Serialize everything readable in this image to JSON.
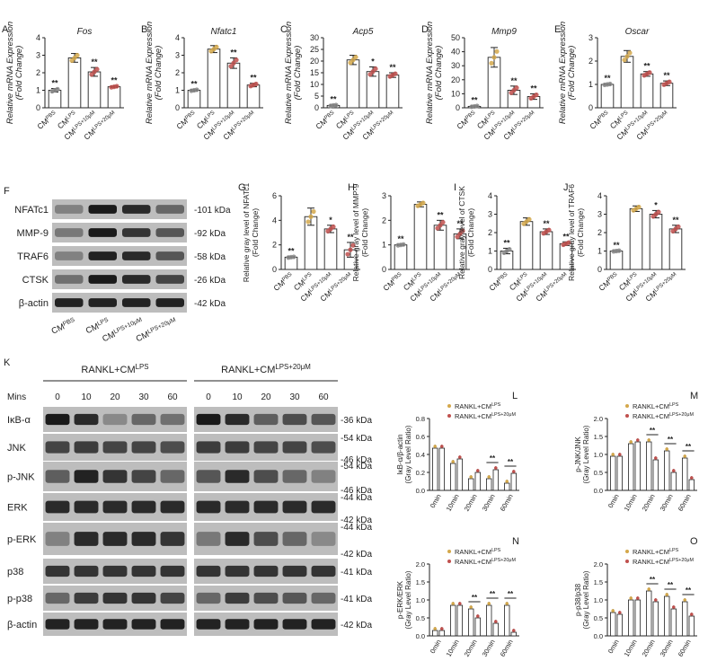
{
  "figure": {
    "panels_top": [
      {
        "letter": "A",
        "title": "Fos",
        "italic": true,
        "ylabel_lines": [
          "Relative mRNA Expression",
          "(Fold Change)"
        ],
        "yticks": [
          "0",
          "1",
          "2",
          "3",
          "4"
        ],
        "ymax": 4
      },
      {
        "letter": "B",
        "title": "Nfatc1",
        "italic": true,
        "ylabel_lines": [
          "Relative mRNA Expression",
          "(Fold Change)"
        ],
        "yticks": [
          "0",
          "1",
          "2",
          "3",
          "4"
        ],
        "ymax": 4
      },
      {
        "letter": "C",
        "title": "Acp5",
        "italic": true,
        "ylabel_lines": [
          "Relative mRNA Expression",
          "(Fold Change)"
        ],
        "yticks": [
          "0",
          "5",
          "10",
          "15",
          "20",
          "25",
          "30"
        ],
        "ymax": 30
      },
      {
        "letter": "D",
        "title": "Mmp9",
        "italic": true,
        "ylabel_lines": [
          "Relative mRNA Expression",
          "(Fold Change)"
        ],
        "yticks": [
          "0",
          "10",
          "20",
          "30",
          "40",
          "50"
        ],
        "ymax": 50
      },
      {
        "letter": "E",
        "title": "Oscar",
        "italic": true,
        "ylabel_lines": [
          "Relative mRNA Expression",
          "(Fold Change)"
        ],
        "yticks": [
          "0",
          "1",
          "2",
          "3"
        ],
        "ymax": 3
      }
    ],
    "panels_mid": [
      {
        "letter": "G",
        "title": "",
        "ylabel_lines": [
          "Relative gray level of NFATc1",
          "(Fold Change)"
        ],
        "yticks": [
          "0",
          "2",
          "4",
          "6"
        ],
        "ymax": 6
      },
      {
        "letter": "H",
        "title": "",
        "ylabel_lines": [
          "Relative gray level of MMP-9",
          "(Fold Change)"
        ],
        "yticks": [
          "0",
          "1",
          "2",
          "3"
        ],
        "ymax": 3
      },
      {
        "letter": "I",
        "title": "",
        "ylabel_lines": [
          "Relative gray level of CTSK",
          "(Fold Change)"
        ],
        "yticks": [
          "0",
          "1",
          "2",
          "3",
          "4"
        ],
        "ymax": 4
      },
      {
        "letter": "J",
        "title": "",
        "ylabel_lines": [
          "Relative gray level of TRAF6",
          "(Fold Change)"
        ],
        "yticks": [
          "0",
          "1",
          "2",
          "3",
          "4"
        ],
        "ymax": 4
      }
    ],
    "cm_categories": [
      "CM^PBS",
      "CM^LPS",
      "CM^LPS+10μM",
      "CM^LPS+20μM"
    ],
    "panel_F": {
      "letter": "F",
      "rows": [
        {
          "name": "NFATc1",
          "kda": "-101 kDa"
        },
        {
          "name": "MMP-9",
          "kda": "-92 kDa"
        },
        {
          "name": "TRAF6",
          "kda": "-58 kDa"
        },
        {
          "name": "CTSK",
          "kda": "-26 kDa"
        },
        {
          "name": "β-actin",
          "kda": "-42 kDa"
        }
      ],
      "lanes": [
        "CM^PBS",
        "CM^LPS",
        "CM^LPS+10μM",
        "CM^LPS+20μM"
      ]
    },
    "panel_K": {
      "letter": "K",
      "group1": "RANKL+CM^LPS",
      "group2": "RANKL+CM^LPS+20μM",
      "mins_label": "Mins",
      "times": [
        "0",
        "10",
        "20",
        "30",
        "60"
      ],
      "rows": [
        {
          "name": "IκB-α",
          "kda": [
            "-36 kDa"
          ]
        },
        {
          "name": "JNK",
          "kda": [
            "-54 kDa",
            "-46 kDa"
          ]
        },
        {
          "name": "p-JNK",
          "kda": [
            "-54 kDa",
            "-46 kDa"
          ]
        },
        {
          "name": "ERK",
          "kda": [
            "-44 kDa",
            "-42 kDa"
          ]
        },
        {
          "name": "p-ERK",
          "kda": [
            "-44 kDa",
            "-42 kDa"
          ]
        },
        {
          "name": "p38",
          "kda": [
            "-41 kDa"
          ]
        },
        {
          "name": "p-p38",
          "kda": [
            "-41 kDa"
          ]
        },
        {
          "name": "β-actin",
          "kda": [
            "-42 kDa"
          ]
        }
      ]
    },
    "panels_time": [
      {
        "letter": "L",
        "ylabel_lines": [
          "IκB-α/β-actin",
          "(Gray Level Ratio)"
        ],
        "yticks": [
          "0.0",
          "0.2",
          "0.4",
          "0.6",
          "0.8"
        ],
        "ymax": 0.8
      },
      {
        "letter": "M",
        "ylabel_lines": [
          "p-JNK/JNK",
          "(Gray Level Ratio)"
        ],
        "yticks": [
          "0.0",
          "0.5",
          "1.0",
          "1.5",
          "2.0"
        ],
        "ymax": 2.0
      },
      {
        "letter": "N",
        "ylabel_lines": [
          "p-ERK/ERK",
          "(Gray Level Ratio)"
        ],
        "yticks": [
          "0.0",
          "0.5",
          "1.0",
          "1.5",
          "2.0"
        ],
        "ymax": 2.0
      },
      {
        "letter": "O",
        "ylabel_lines": [
          "p-p38/p38",
          "(Gray Level Ratio)"
        ],
        "yticks": [
          "0.0",
          "0.5",
          "1.0",
          "1.5",
          "2.0"
        ],
        "ymax": 2.0
      }
    ],
    "time_categories": [
      "0min",
      "10min",
      "20min",
      "30min",
      "60min"
    ],
    "legend": [
      "RANKL+CM^LPS",
      "RANKL+CM^LPS+20μM"
    ],
    "colors": {
      "lps": "#d4a84b",
      "combo": "#c0504d",
      "pbs": "#888888",
      "bar_edge": "#222222"
    }
  },
  "chart_data": [
    {
      "type": "bar",
      "title": "Fos",
      "categories": [
        "CM^PBS",
        "CM^LPS",
        "CM^LPS+10μM",
        "CM^LPS+20μM"
      ],
      "values": [
        1.0,
        2.85,
        2.05,
        1.2
      ],
      "errors": [
        0.1,
        0.25,
        0.25,
        0.05
      ],
      "sig": [
        "**",
        "",
        "**",
        "**"
      ],
      "ylim": [
        0,
        4
      ],
      "ylabel": "Relative mRNA Expression (Fold Change)"
    },
    {
      "type": "bar",
      "title": "Nfatc1",
      "categories": [
        "CM^PBS",
        "CM^LPS",
        "CM^LPS+10μM",
        "CM^LPS+20μM"
      ],
      "values": [
        1.0,
        3.35,
        2.55,
        1.3
      ],
      "errors": [
        0.05,
        0.2,
        0.3,
        0.1
      ],
      "sig": [
        "**",
        "",
        "**",
        "**"
      ],
      "ylim": [
        0,
        4
      ],
      "ylabel": "Relative mRNA Expression (Fold Change)"
    },
    {
      "type": "bar",
      "title": "Acp5",
      "categories": [
        "CM^PBS",
        "CM^LPS",
        "CM^LPS+10μM",
        "CM^LPS+20μM"
      ],
      "values": [
        1.0,
        20.5,
        15.5,
        14.0
      ],
      "errors": [
        0.3,
        2.0,
        2.0,
        1.0
      ],
      "sig": [
        "**",
        "",
        "*",
        "**"
      ],
      "ylim": [
        0,
        30
      ],
      "ylabel": "Relative mRNA Expression (Fold Change)"
    },
    {
      "type": "bar",
      "title": "Mmp9",
      "categories": [
        "CM^PBS",
        "CM^LPS",
        "CM^LPS+10μM",
        "CM^LPS+20μM"
      ],
      "values": [
        1.0,
        36.0,
        12.5,
        8.0
      ],
      "errors": [
        0.5,
        7.0,
        3.0,
        2.0
      ],
      "sig": [
        "**",
        "",
        "**",
        "**"
      ],
      "ylim": [
        0,
        50
      ],
      "ylabel": "Relative mRNA Expression (Fold Change)"
    },
    {
      "type": "bar",
      "title": "Oscar",
      "categories": [
        "CM^PBS",
        "CM^LPS",
        "CM^LPS+10μM",
        "CM^LPS+20μM"
      ],
      "values": [
        1.0,
        2.2,
        1.45,
        1.05
      ],
      "errors": [
        0.03,
        0.25,
        0.1,
        0.1
      ],
      "sig": [
        "**",
        "",
        "**",
        "**"
      ],
      "ylim": [
        0,
        3
      ],
      "ylabel": "Relative mRNA Expression (Fold Change)"
    },
    {
      "type": "bar",
      "title": "",
      "categories": [
        "CM^PBS",
        "CM^LPS",
        "CM^LPS+10μM",
        "CM^LPS+20μM"
      ],
      "values": [
        1.0,
        4.3,
        3.3,
        1.6
      ],
      "errors": [
        0.05,
        0.7,
        0.3,
        0.6
      ],
      "sig": [
        "**",
        "",
        "*",
        "**"
      ],
      "ylim": [
        0,
        6
      ],
      "ylabel": "Relative gray level of NFATc1 (Fold Change)"
    },
    {
      "type": "bar",
      "title": "",
      "categories": [
        "CM^PBS",
        "CM^LPS",
        "CM^LPS+10μM",
        "CM^LPS+20μM"
      ],
      "values": [
        1.0,
        2.65,
        1.8,
        1.45
      ],
      "errors": [
        0.03,
        0.1,
        0.2,
        0.2
      ],
      "sig": [
        "**",
        "",
        "**",
        "**"
      ],
      "ylim": [
        0,
        3
      ],
      "ylabel": "Relative gray level of MMP-9 (Fold Change)"
    },
    {
      "type": "bar",
      "title": "",
      "categories": [
        "CM^PBS",
        "CM^LPS",
        "CM^LPS+10μM",
        "CM^LPS+20μM"
      ],
      "values": [
        1.0,
        2.6,
        2.05,
        1.4
      ],
      "errors": [
        0.15,
        0.2,
        0.15,
        0.1
      ],
      "sig": [
        "**",
        "",
        "**",
        "**"
      ],
      "ylim": [
        0,
        4
      ],
      "ylabel": "Relative gray level of CTSK (Fold Change)"
    },
    {
      "type": "bar",
      "title": "",
      "categories": [
        "CM^PBS",
        "CM^LPS",
        "CM^LPS+10μM",
        "CM^LPS+20μM"
      ],
      "values": [
        1.0,
        3.3,
        3.0,
        2.2
      ],
      "errors": [
        0.03,
        0.15,
        0.2,
        0.2
      ],
      "sig": [
        "**",
        "",
        "*",
        "**"
      ],
      "ylim": [
        0,
        4
      ],
      "ylabel": "Relative gray level of TRAF6 (Fold Change)"
    },
    {
      "type": "bar",
      "categories": [
        "0min",
        "10min",
        "20min",
        "30min",
        "60min"
      ],
      "series": [
        {
          "name": "RANKL+CM^LPS",
          "values": [
            0.47,
            0.3,
            0.13,
            0.13,
            0.08
          ]
        },
        {
          "name": "RANKL+CM^LPS+20μM",
          "values": [
            0.47,
            0.35,
            0.2,
            0.23,
            0.19
          ]
        }
      ],
      "sig": [
        "",
        "",
        "",
        "**",
        "**"
      ],
      "ylim": [
        0,
        0.8
      ],
      "ylabel": "IκB-α/β-actin (Gray Level Ratio)"
    },
    {
      "type": "bar",
      "categories": [
        "0min",
        "10min",
        "20min",
        "30min",
        "60min"
      ],
      "series": [
        {
          "name": "RANKL+CM^LPS",
          "values": [
            0.95,
            1.3,
            1.35,
            1.1,
            0.9
          ]
        },
        {
          "name": "RANKL+CM^LPS+20μM",
          "values": [
            0.95,
            1.35,
            0.85,
            0.5,
            0.3
          ]
        }
      ],
      "sig": [
        "",
        "",
        "**",
        "**",
        "**"
      ],
      "ylim": [
        0,
        2.0
      ],
      "ylabel": "p-JNK/JNK (Gray Level Ratio)"
    },
    {
      "type": "bar",
      "categories": [
        "0min",
        "10min",
        "20min",
        "30min",
        "60min"
      ],
      "series": [
        {
          "name": "RANKL+CM^LPS",
          "values": [
            0.15,
            0.85,
            0.75,
            0.85,
            0.85
          ]
        },
        {
          "name": "RANKL+CM^LPS+20μM",
          "values": [
            0.15,
            0.85,
            0.5,
            0.35,
            0.1
          ]
        }
      ],
      "sig": [
        "",
        "",
        "**",
        "**",
        "**"
      ],
      "ylim": [
        0,
        2.0
      ],
      "ylabel": "p-ERK/ERK (Gray Level Ratio)"
    },
    {
      "type": "bar",
      "categories": [
        "0min",
        "10min",
        "20min",
        "30min",
        "60min"
      ],
      "series": [
        {
          "name": "RANKL+CM^LPS",
          "values": [
            0.65,
            1.0,
            1.25,
            1.1,
            0.95
          ]
        },
        {
          "name": "RANKL+CM^LPS+20μM",
          "values": [
            0.6,
            1.0,
            0.95,
            0.75,
            0.55
          ]
        }
      ],
      "sig": [
        "",
        "",
        "**",
        "**",
        "**"
      ],
      "ylim": [
        0,
        2.0
      ],
      "ylabel": "p-p38/p38 (Gray Level Ratio)"
    }
  ]
}
